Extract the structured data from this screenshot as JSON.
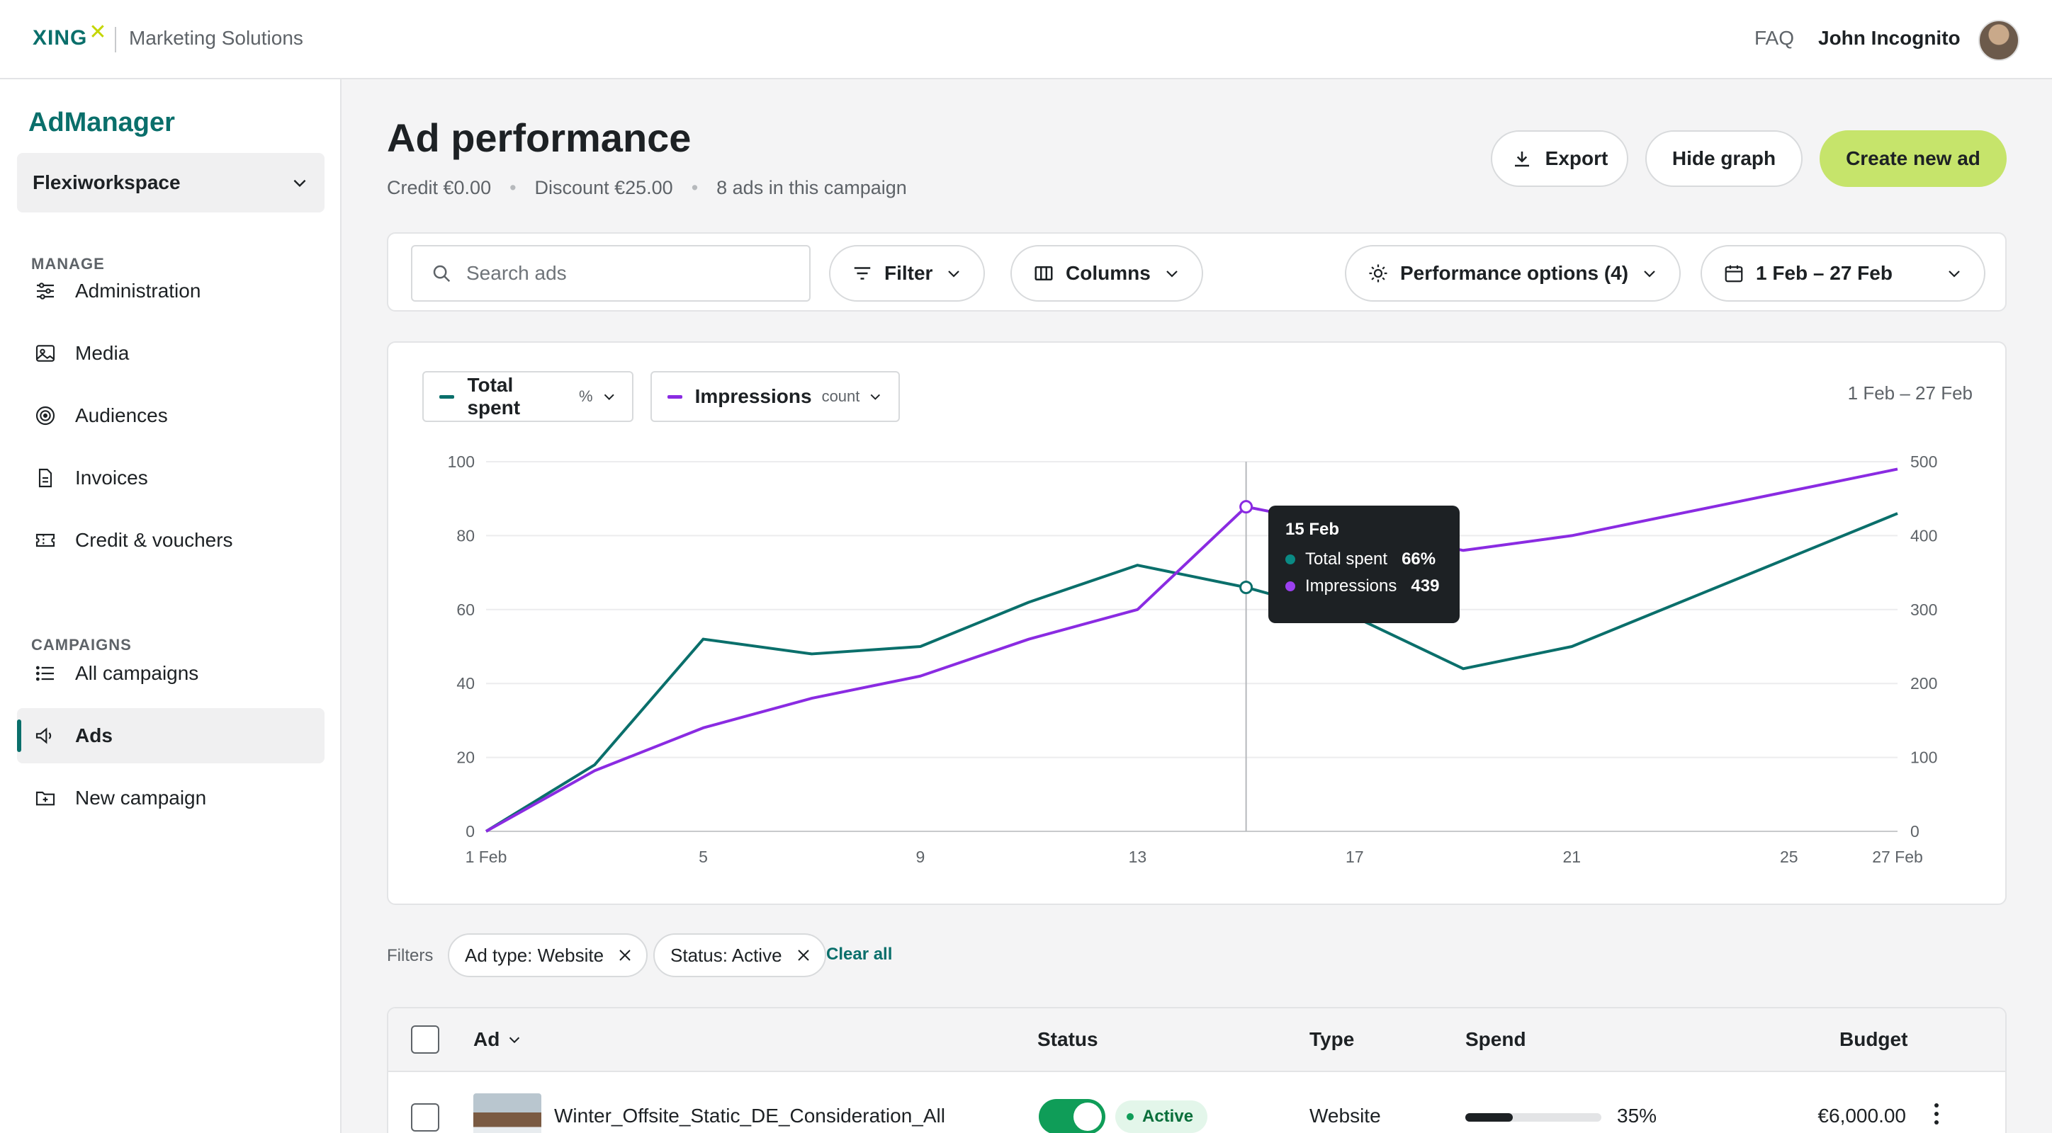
{
  "topbar": {
    "logo_text": "XING",
    "logo_mark": "✕",
    "subtitle": "Marketing Solutions",
    "faq": "FAQ",
    "user_name": "John Incognito"
  },
  "sidebar": {
    "brand": "AdManager",
    "workspace": "Flexiworkspace",
    "manage_label": "MANAGE",
    "manage_items": [
      {
        "label": "Administration",
        "icon": "sliders-icon"
      },
      {
        "label": "Media",
        "icon": "image-icon"
      },
      {
        "label": "Audiences",
        "icon": "target-icon"
      },
      {
        "label": "Invoices",
        "icon": "document-icon"
      },
      {
        "label": "Credit & vouchers",
        "icon": "ticket-icon"
      }
    ],
    "campaigns_label": "CAMPAIGNS",
    "campaign_items": [
      {
        "label": "All campaigns",
        "icon": "list-icon"
      },
      {
        "label": "Ads",
        "icon": "megaphone-icon",
        "active": true
      },
      {
        "label": "New campaign",
        "icon": "folder-plus-icon"
      }
    ]
  },
  "header": {
    "title": "Ad performance",
    "credit": "Credit €0.00",
    "discount": "Discount €25.00",
    "ads_count": "8 ads in this campaign",
    "export": "Export",
    "hide_graph": "Hide graph",
    "create": "Create new ad"
  },
  "toolbar": {
    "search_placeholder": "Search ads",
    "filter": "Filter",
    "columns": "Columns",
    "performance": "Performance options (4)",
    "date_range": "1 Feb – 27 Feb"
  },
  "chart_card": {
    "metric1_name": "Total spent",
    "metric1_unit": "%",
    "metric2_name": "Impressions",
    "metric2_unit": "count",
    "range": "1 Feb – 27 Feb",
    "tooltip": {
      "date": "15 Feb",
      "row1_label": "Total spent",
      "row1_value": "66%",
      "row2_label": "Impressions",
      "row2_value": "439"
    }
  },
  "chart_data": {
    "type": "line",
    "x": [
      1,
      3,
      5,
      7,
      9,
      11,
      13,
      15,
      17,
      19,
      21,
      23,
      25,
      27
    ],
    "x_tick_labels": [
      "1 Feb",
      "5",
      "9",
      "13",
      "17",
      "21",
      "25",
      "27 Feb"
    ],
    "x_tick_values": [
      1,
      5,
      9,
      13,
      17,
      21,
      25,
      27
    ],
    "series": [
      {
        "name": "Total spent",
        "axis": "left",
        "color": "#0a6f6b",
        "values": [
          0,
          18,
          52,
          48,
          50,
          62,
          72,
          66,
          58,
          44,
          50,
          62,
          74,
          86
        ]
      },
      {
        "name": "Impressions",
        "axis": "right",
        "color": "#8a2be2",
        "values": [
          0,
          82,
          140,
          180,
          210,
          260,
          300,
          439,
          410,
          380,
          400,
          430,
          460,
          490
        ]
      }
    ],
    "ylim_left": [
      0,
      100
    ],
    "yticks_left": [
      0,
      20,
      40,
      60,
      80,
      100
    ],
    "ylim_right": [
      0,
      500
    ],
    "yticks_right": [
      0,
      100,
      200,
      300,
      400,
      500
    ],
    "highlight_x": 15,
    "grid": true
  },
  "filters": {
    "label": "Filters",
    "chips": [
      "Ad type: Website",
      "Status: Active"
    ],
    "clear_all": "Clear all"
  },
  "table": {
    "headers": {
      "ad": "Ad",
      "status": "Status",
      "type": "Type",
      "spend": "Spend",
      "budget": "Budget"
    },
    "rows": [
      {
        "name": "Winter_Offsite_Static_DE_Consideration_All",
        "status": "Active",
        "type": "Website",
        "spend_pct": 35,
        "spend_label": "35%",
        "budget": "€6,000.00"
      }
    ]
  },
  "colors": {
    "accent": "#0a6f6b",
    "purple": "#8a2be2",
    "primary_button": "#c6e46b"
  }
}
